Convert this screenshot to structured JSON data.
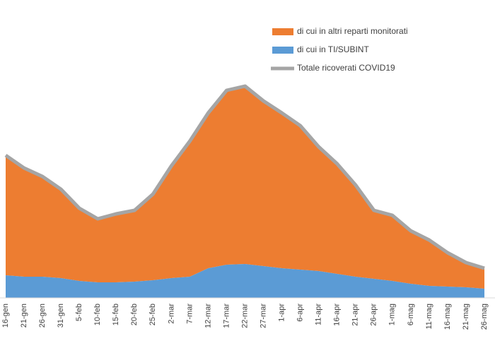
{
  "chart_data": {
    "type": "area",
    "categories": [
      "16-gen",
      "21-gen",
      "26-gen",
      "31-gen",
      "5-feb",
      "10-feb",
      "15-feb",
      "20-feb",
      "25-feb",
      "2-mar",
      "7-mar",
      "12-mar",
      "17-mar",
      "22-mar",
      "27-mar",
      "1-apr",
      "6-apr",
      "11-apr",
      "16-apr",
      "21-apr",
      "26-apr",
      "1-mag",
      "6-mag",
      "11-mag",
      "16-mag",
      "21-mag",
      "26-mag"
    ],
    "series": [
      {
        "name": "di cui in altri reparti monitorati",
        "color": "#ed7d31",
        "style": "area",
        "values": [
          170,
          154,
          142,
          126,
          103,
          90,
          97,
          101,
          122,
          159,
          192,
          220,
          247,
          252,
          234,
          220,
          204,
          176,
          156,
          130,
          97,
          93,
          75,
          65,
          48,
          35,
          29
        ]
      },
      {
        "name": "di cui in TI/SUBINT",
        "color": "#5b9bd5",
        "style": "area",
        "values": [
          32,
          30,
          30,
          28,
          24,
          22,
          22,
          23,
          25,
          28,
          30,
          42,
          47,
          48,
          45,
          42,
          40,
          38,
          34,
          30,
          27,
          24,
          20,
          17,
          16,
          15,
          13
        ]
      },
      {
        "name": "Totale ricoverati COVID19",
        "color": "#a5a5a5",
        "style": "line",
        "values": [
          202,
          184,
          172,
          154,
          127,
          112,
          119,
          124,
          147,
          187,
          222,
          262,
          294,
          300,
          279,
          262,
          244,
          214,
          190,
          160,
          124,
          117,
          95,
          82,
          64,
          50,
          42
        ]
      }
    ],
    "ylim": [
      0,
      300
    ]
  }
}
